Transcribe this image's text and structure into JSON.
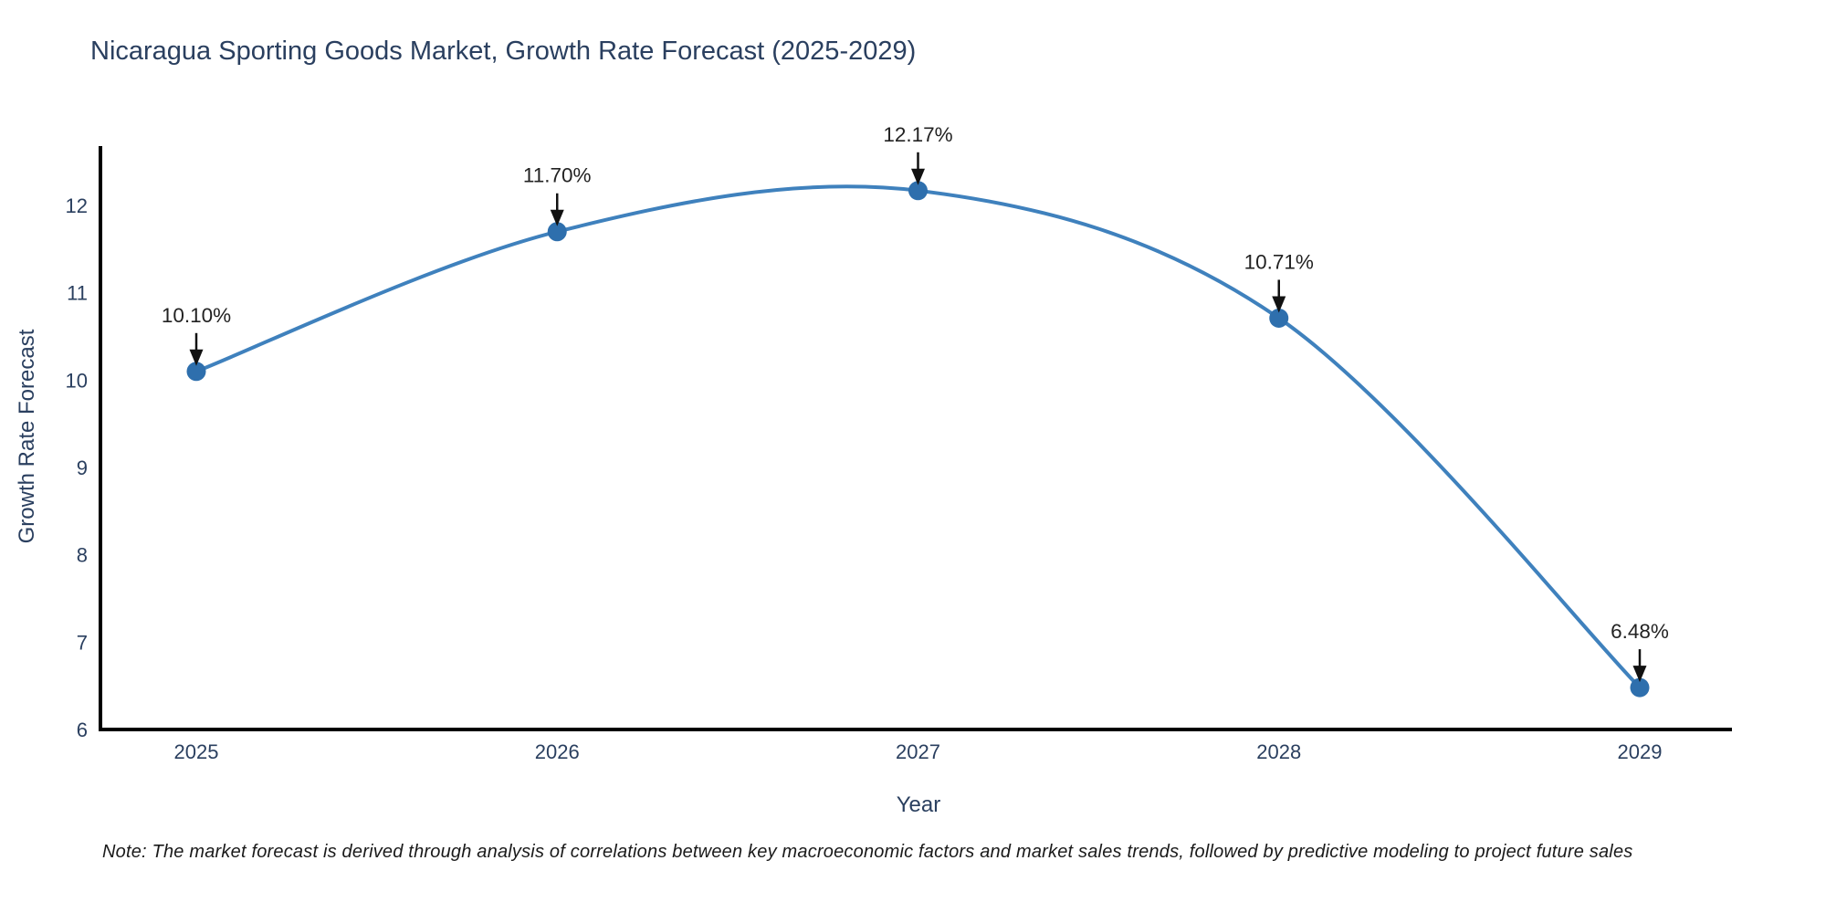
{
  "chart_data": {
    "type": "line",
    "title": "Nicaragua Sporting Goods Market, Growth Rate Forecast (2025-2029)",
    "x": [
      "2025",
      "2026",
      "2027",
      "2028",
      "2029"
    ],
    "series": [
      {
        "name": "Growth Rate Forecast",
        "values": [
          10.1,
          11.7,
          12.17,
          10.71,
          6.48
        ]
      }
    ],
    "point_labels": [
      "10.10%",
      "11.70%",
      "12.17%",
      "10.71%",
      "6.48%"
    ],
    "xlabel": "Year",
    "ylabel": "Growth Rate Forecast",
    "yticks": [
      6,
      7,
      8,
      9,
      10,
      11,
      12
    ],
    "ylim": [
      6,
      12.68
    ],
    "line_shape": "spline",
    "grid": false,
    "legend": "none",
    "markers": true,
    "colors": {
      "line": "#3f81bd",
      "marker": "#2e6fad",
      "axis": "#000000",
      "tick_text": "#2a3f5f",
      "title_text": "#2a3f5f",
      "annotation_text": "#222222",
      "annotation_arrow": "#111111",
      "background": "#ffffff"
    }
  },
  "note": "Note: The market forecast is derived through analysis of correlations between key macroeconomic factors and market sales trends, followed by predictive modeling to project future sales"
}
